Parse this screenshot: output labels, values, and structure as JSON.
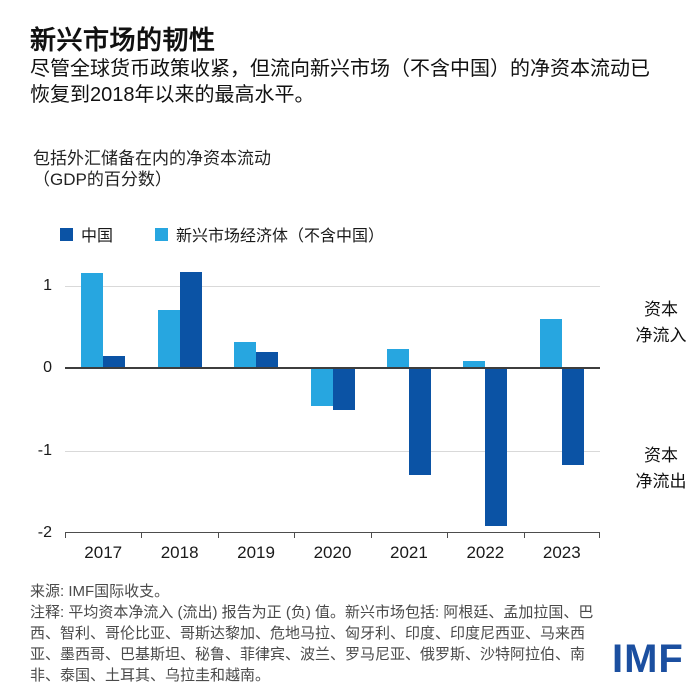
{
  "header": {
    "title": "新兴市场的韧性",
    "subtitle": "尽管全球货币政策收紧，但流向新兴市场（不含中国）的净资本流动已恢复到2018年以来的最高水平。"
  },
  "chart": {
    "label_line1": "包括外汇储备在内的净资本流动",
    "label_line2": "（GDP的百分数）"
  },
  "chart_data": {
    "type": "bar",
    "categories": [
      "2017",
      "2018",
      "2019",
      "2020",
      "2021",
      "2022",
      "2023"
    ],
    "series": [
      {
        "name": "中国",
        "color": "#0b53a5",
        "values": [
          0.15,
          1.17,
          0.2,
          -0.51,
          -1.3,
          -1.92,
          -1.18
        ]
      },
      {
        "name": "新兴市场经济体（不含中国）",
        "color": "#27a6e0",
        "values": [
          1.15,
          0.7,
          0.32,
          -0.46,
          0.23,
          0.08,
          0.6
        ]
      }
    ],
    "plot_order": [
      1,
      0
    ],
    "title": "包括外汇储备在内的净资本流动（GDP的百分数）",
    "xlabel": "",
    "ylabel": "",
    "ylim": [
      -2,
      1.25
    ],
    "yticks": [
      1,
      0,
      -1,
      -2
    ],
    "gridlines": [
      1,
      -1
    ],
    "zero_line": 0,
    "legend_position": "top-left",
    "grid": "horizontal-only",
    "right_labels": [
      {
        "lines": [
          "资本",
          "净流入"
        ]
      },
      {
        "lines": [
          "资本",
          "净流出"
        ]
      }
    ]
  },
  "notes": {
    "source": "来源: IMF国际收支。",
    "note": "注释: 平均资本净流入 (流出) 报告为正 (负) 值。新兴市场包括: 阿根廷、孟加拉国、巴西、智利、哥伦比亚、哥斯达黎加、危地马拉、匈牙利、印度、印度尼西亚、马来西亚、墨西哥、巴基斯坦、秘鲁、菲律宾、波兰、罗马尼亚、俄罗斯、沙特阿拉伯、南非、泰国、土耳其、乌拉圭和越南。"
  },
  "branding": {
    "logo_text": "IMF",
    "logo_color": "#1b4fa0"
  }
}
